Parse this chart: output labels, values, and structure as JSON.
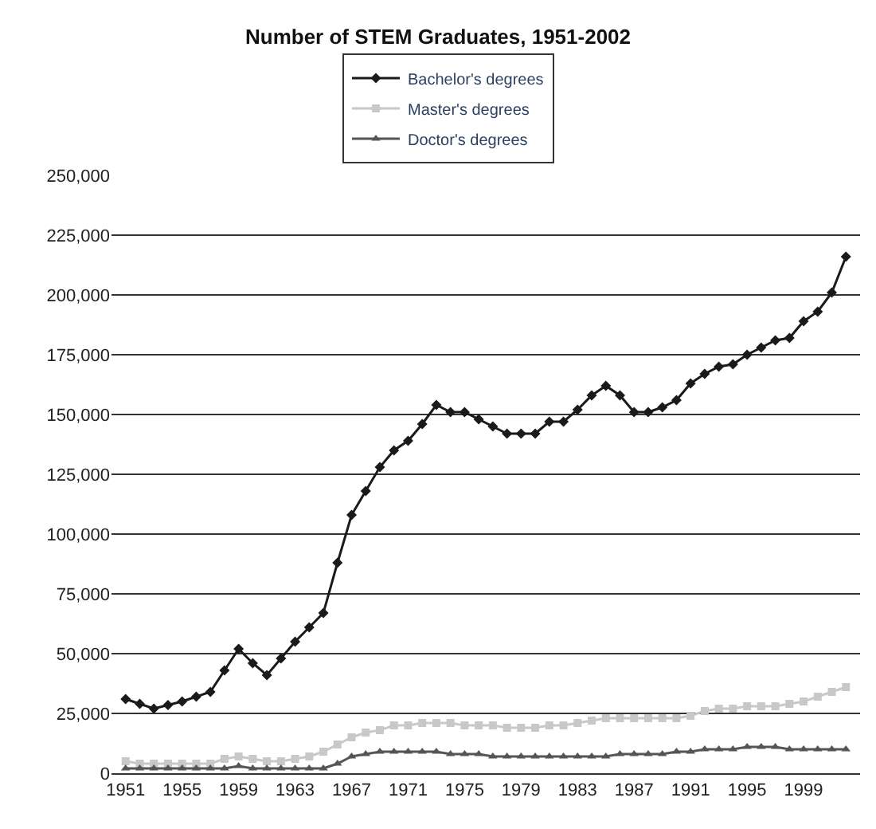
{
  "chart_data": {
    "type": "line",
    "title": "Number of STEM Graduates, 1951-2002",
    "x": [
      1951,
      1952,
      1953,
      1954,
      1955,
      1956,
      1957,
      1958,
      1959,
      1960,
      1961,
      1962,
      1963,
      1964,
      1965,
      1966,
      1967,
      1968,
      1969,
      1970,
      1971,
      1972,
      1973,
      1974,
      1975,
      1976,
      1977,
      1978,
      1979,
      1980,
      1981,
      1982,
      1983,
      1984,
      1985,
      1986,
      1987,
      1988,
      1989,
      1990,
      1991,
      1992,
      1993,
      1994,
      1995,
      1996,
      1997,
      1998,
      1999,
      2000,
      2001,
      2002
    ],
    "series": [
      {
        "name": "Bachelor's degrees",
        "color": "#1a1a1a",
        "marker": "diamond",
        "values": [
          31000,
          29000,
          27000,
          28500,
          30000,
          32000,
          34000,
          43000,
          52000,
          46000,
          41000,
          48000,
          55000,
          61000,
          67000,
          88000,
          108000,
          118000,
          128000,
          135000,
          139000,
          146000,
          154000,
          151000,
          151000,
          148000,
          145000,
          142000,
          142000,
          142000,
          147000,
          147000,
          152000,
          158000,
          162000,
          158000,
          151000,
          151000,
          153000,
          156000,
          163000,
          167000,
          170000,
          171000,
          175000,
          178000,
          181000,
          182000,
          189000,
          193000,
          201000,
          216000
        ]
      },
      {
        "name": "Master's degrees",
        "color": "#c8c8c8",
        "marker": "square",
        "values": [
          5000,
          4000,
          4000,
          4000,
          4000,
          4000,
          4000,
          6000,
          7000,
          6000,
          5000,
          5000,
          6000,
          7000,
          9000,
          12000,
          15000,
          17000,
          18000,
          20000,
          20000,
          21000,
          21000,
          21000,
          20000,
          20000,
          20000,
          19000,
          19000,
          19000,
          20000,
          20000,
          21000,
          22000,
          23000,
          23000,
          23000,
          23000,
          23000,
          23000,
          24000,
          26000,
          27000,
          27000,
          28000,
          28000,
          28000,
          29000,
          30000,
          32000,
          34000,
          36000
        ]
      },
      {
        "name": "Doctor's degrees",
        "color": "#555555",
        "marker": "triangle",
        "values": [
          2000,
          2000,
          2000,
          2000,
          2000,
          2000,
          2000,
          2000,
          3000,
          2000,
          2000,
          2000,
          2000,
          2000,
          2000,
          4000,
          7000,
          8000,
          9000,
          9000,
          9000,
          9000,
          9000,
          8000,
          8000,
          8000,
          7000,
          7000,
          7000,
          7000,
          7000,
          7000,
          7000,
          7000,
          7000,
          8000,
          8000,
          8000,
          8000,
          9000,
          9000,
          10000,
          10000,
          10000,
          11000,
          11000,
          11000,
          10000,
          10000,
          10000,
          10000,
          10000
        ]
      }
    ],
    "xlim": [
      1950,
      2003
    ],
    "xticks": [
      1951,
      1955,
      1959,
      1963,
      1967,
      1971,
      1975,
      1979,
      1983,
      1987,
      1991,
      1995,
      1999
    ],
    "ylim": [
      0,
      250000
    ],
    "yticks": [
      {
        "value": 0,
        "label": "0"
      },
      {
        "value": 25000,
        "label": "25,000"
      },
      {
        "value": 50000,
        "label": "50,000"
      },
      {
        "value": 75000,
        "label": "75,000"
      },
      {
        "value": 100000,
        "label": "100,000"
      },
      {
        "value": 125000,
        "label": "125,000"
      },
      {
        "value": 150000,
        "label": "150,000"
      },
      {
        "value": 175000,
        "label": "175,000"
      },
      {
        "value": 200000,
        "label": "200,000"
      },
      {
        "value": 225000,
        "label": "225,000"
      },
      {
        "value": 250000,
        "label": "250,000"
      }
    ],
    "grid": "y",
    "legend": "top",
    "line_style": "solid"
  }
}
